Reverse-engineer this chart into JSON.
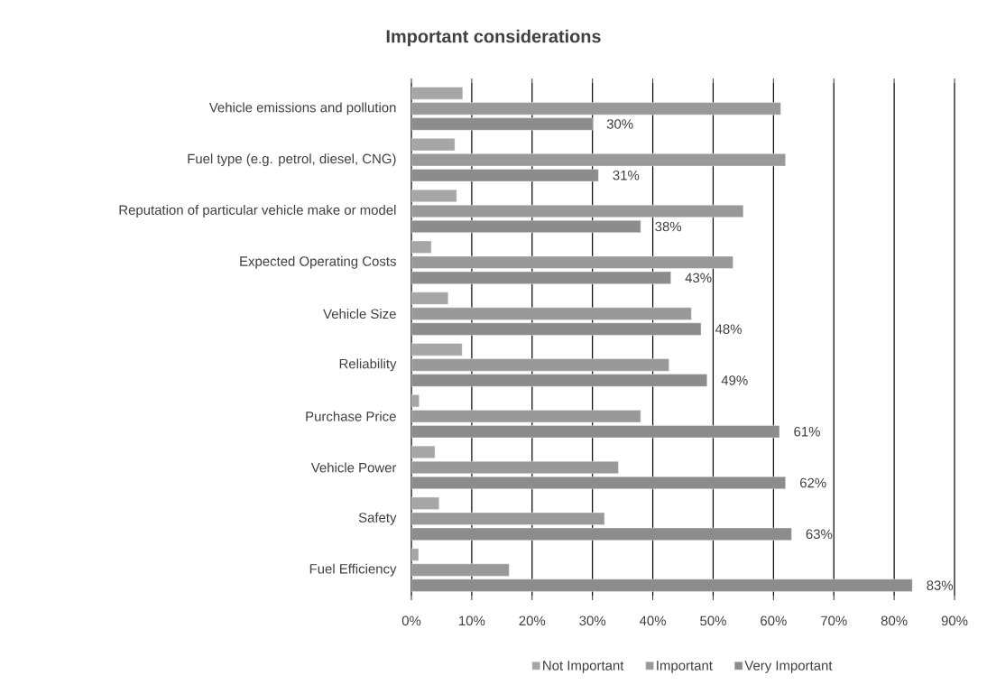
{
  "chart_data": {
    "type": "bar",
    "orientation": "horizontal",
    "title": "Important considerations",
    "categories": [
      "Vehicle emissions and pollution",
      "Fuel type (e.g. petrol, diesel, CNG)",
      "Reputation of particular vehicle make or model",
      "Expected Operating Costs",
      "Vehicle Size",
      "Reliability",
      "Purchase Price",
      "Vehicle Power",
      "Safety",
      "Fuel Efficiency"
    ],
    "series": [
      {
        "name": "Not Important",
        "color": "#a6a6a6",
        "values": [
          8.5,
          7.2,
          7.5,
          3.3,
          6.1,
          8.4,
          1.3,
          3.9,
          4.6,
          1.2
        ]
      },
      {
        "name": "Important",
        "color": "#999999",
        "values": [
          61.2,
          62.0,
          55.0,
          53.3,
          46.4,
          42.7,
          38.0,
          34.3,
          32.0,
          16.2
        ]
      },
      {
        "name": "Very Important",
        "color": "#8c8c8c",
        "values": [
          30,
          31,
          38,
          43,
          48,
          49,
          61,
          62,
          63,
          83
        ],
        "value_labels": [
          "30%",
          "31%",
          "38%",
          "43%",
          "48%",
          "49%",
          "61%",
          "62%",
          "63%",
          "83%"
        ]
      }
    ],
    "xlim": [
      0,
      90
    ],
    "xticks": [
      {
        "value": 0,
        "label": "0%"
      },
      {
        "value": 10,
        "label": "10%"
      },
      {
        "value": 20,
        "label": "20%"
      },
      {
        "value": 30,
        "label": "30%"
      },
      {
        "value": 40,
        "label": "40%"
      },
      {
        "value": 50,
        "label": "50%"
      },
      {
        "value": 60,
        "label": "60%"
      },
      {
        "value": 70,
        "label": "70%"
      },
      {
        "value": 80,
        "label": "80%"
      },
      {
        "value": 90,
        "label": "90%"
      }
    ],
    "grid": "x",
    "legend": "bottom"
  }
}
